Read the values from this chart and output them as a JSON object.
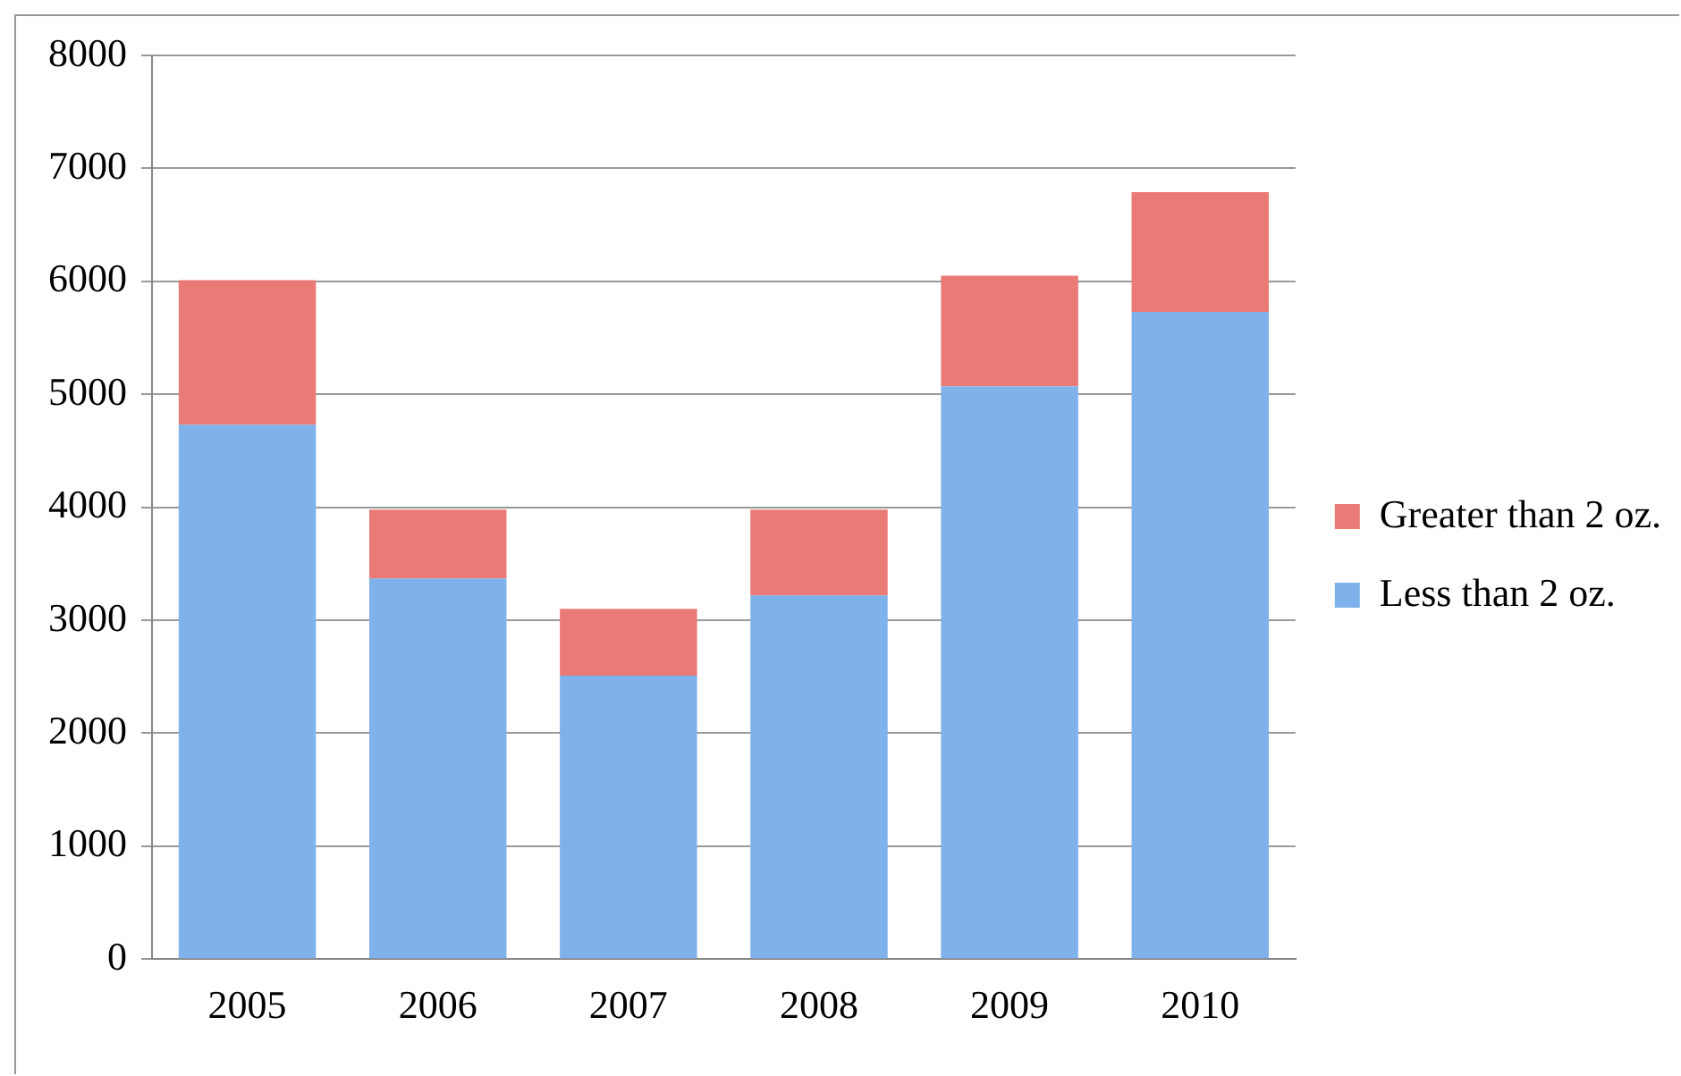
{
  "chart_data": {
    "type": "bar",
    "stacked": true,
    "categories": [
      "2005",
      "2006",
      "2007",
      "2008",
      "2009",
      "2010"
    ],
    "series": [
      {
        "name": "Less than 2 oz.",
        "color": "#7fb2ea",
        "values": [
          4730,
          3370,
          2510,
          3220,
          5070,
          5730
        ]
      },
      {
        "name": "Greater than 2 oz.",
        "color": "#e97a76",
        "values": [
          1280,
          610,
          590,
          760,
          980,
          1060
        ]
      }
    ],
    "ylim": [
      0,
      8000
    ],
    "yticks": [
      0,
      1000,
      2000,
      3000,
      4000,
      5000,
      6000,
      7000,
      8000
    ],
    "grid": "y",
    "legend": "right"
  }
}
